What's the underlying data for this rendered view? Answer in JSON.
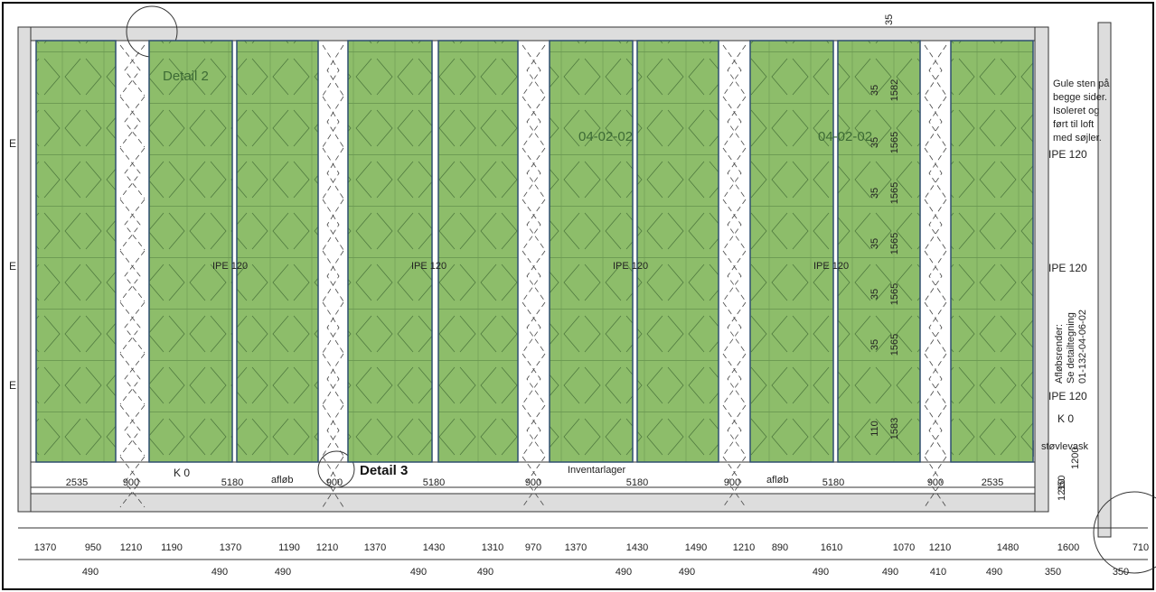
{
  "labels": {
    "detail_2": "Detail 2",
    "detail_3": "Detail 3",
    "modules": [
      "04-02-02",
      "04-02-02"
    ],
    "ipe_panels": [
      "IPE 120",
      "IPE 120",
      "IPE 120",
      "IPE 120"
    ],
    "ipe_right": [
      "IPE 120",
      "IPE 120",
      "IPE 120"
    ],
    "note": [
      "Gule sten på",
      "begge sider.",
      "Isoleret og",
      "ført til loft",
      "med søjler."
    ],
    "drain_note": [
      "Afløbsrender:",
      "Se detailtegning",
      "01-132-04-06-02"
    ],
    "k0": [
      "K 0",
      "K 0"
    ],
    "boot_wash": "støvlevask",
    "drain": [
      "afløb",
      "afløb"
    ],
    "storage": "Inventarlager",
    "grid_marks": [
      "E",
      "E",
      "E"
    ],
    "top_dim": "35"
  },
  "dims_row1": [
    "2535",
    "900",
    "5180",
    "900",
    "5180",
    "900",
    "5180",
    "900",
    "5180",
    "900",
    "2535"
  ],
  "dims_side": [
    "1210",
    "1200",
    "350"
  ],
  "dims_bottom": [
    "1370",
    "950",
    "1210",
    "1190",
    "1370",
    "1190",
    "1210",
    "1370",
    "1430",
    "1310",
    "970",
    "1370",
    "1430",
    "1490",
    "1210",
    "890",
    "1610",
    "1070",
    "1210",
    "1480",
    "1600",
    "710"
  ],
  "dims_lower": [
    "490",
    "490",
    "490",
    "490",
    "490",
    "490",
    "490",
    "490",
    "490",
    "410",
    "490",
    "350",
    "350"
  ],
  "dims_vertical": [
    [
      "35",
      "1582"
    ],
    [
      "35",
      "1565"
    ],
    [
      "35",
      "1565"
    ],
    [
      "35",
      "1565"
    ],
    [
      "35",
      "1565"
    ],
    [
      "35",
      "1565"
    ],
    [
      "110",
      "1583"
    ]
  ]
}
